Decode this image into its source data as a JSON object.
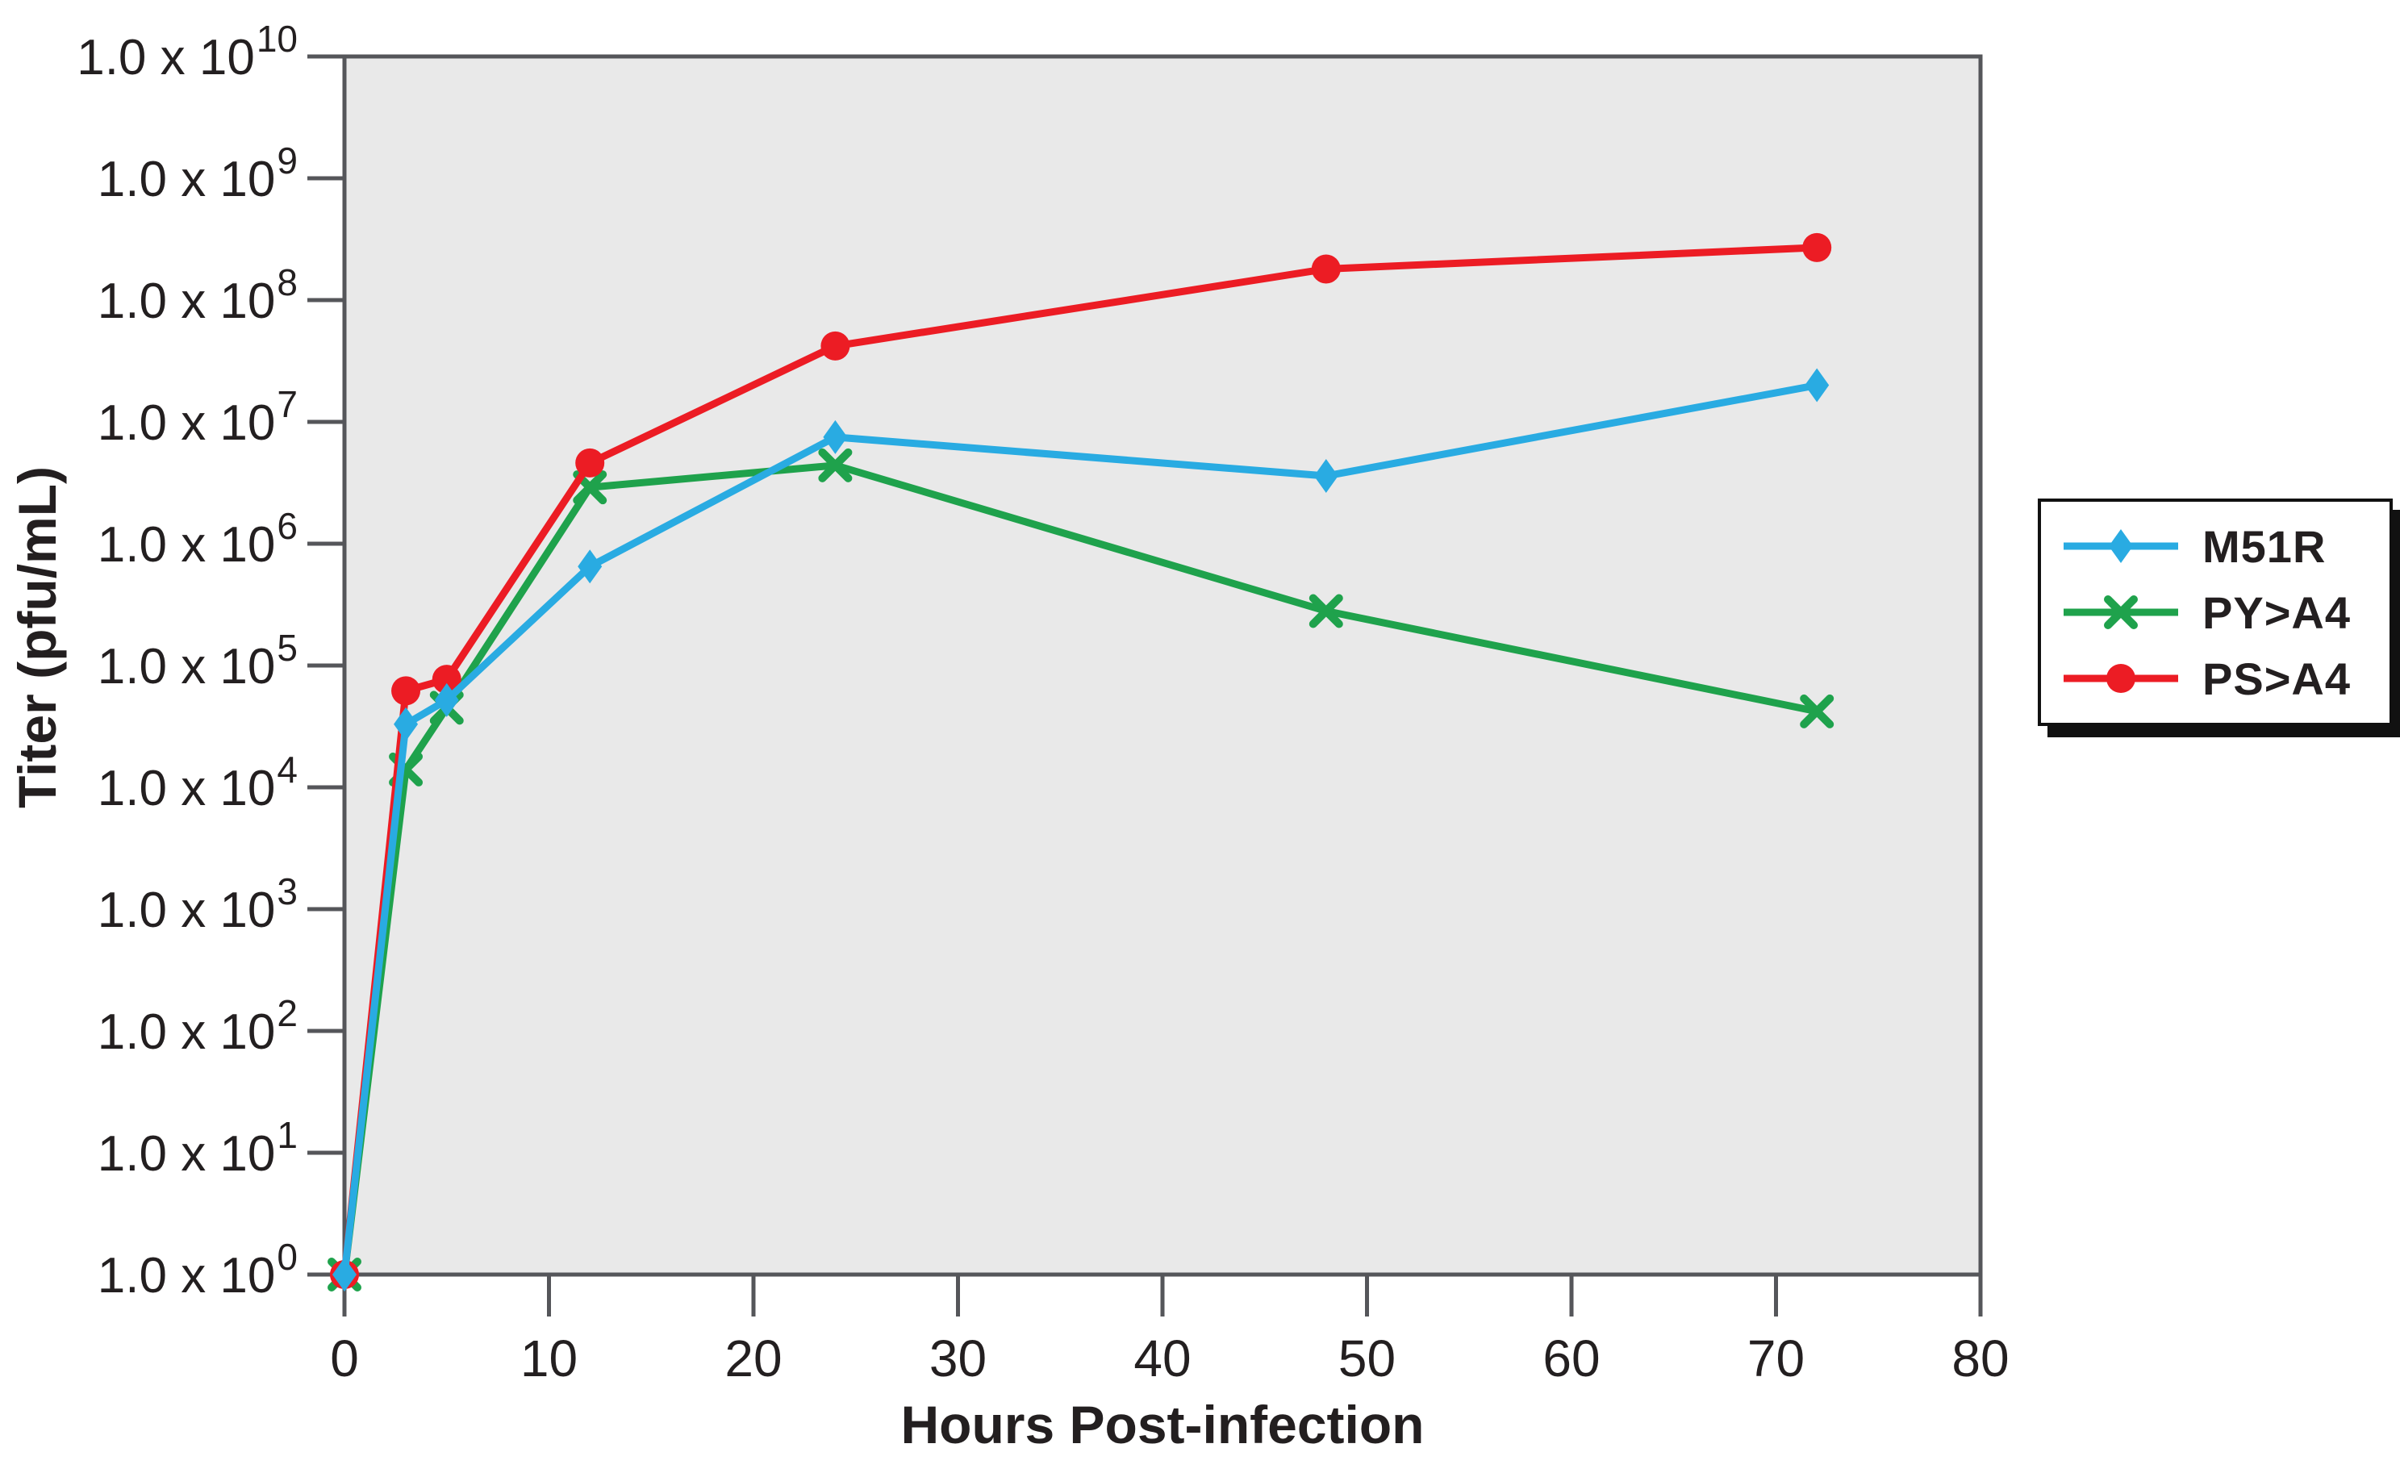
{
  "chart_data": {
    "type": "line",
    "title": "",
    "xlabel": "Hours Post-infection",
    "ylabel": "Titer (pfu/mL)",
    "x_hours": [
      0,
      3,
      5,
      12,
      24,
      48,
      72
    ],
    "xlim": [
      0,
      80
    ],
    "xticks": [
      0,
      10,
      20,
      30,
      40,
      50,
      60,
      70,
      80
    ],
    "y_scale": "log10",
    "ylim_exp": [
      0,
      10
    ],
    "ytick_exponents": [
      0,
      1,
      2,
      3,
      4,
      5,
      6,
      7,
      8,
      9,
      10
    ],
    "ytick_prefix": "1.0 x 10",
    "grid": false,
    "legend_position": "outside-right",
    "plot_bg_color": "#E9E9E9",
    "axis_color": "#55565A",
    "text_color": "#231F20",
    "series": [
      {
        "name": "M51R",
        "color": "#29ABE2",
        "marker": "diamond",
        "values": [
          1,
          33000,
          52000,
          650000,
          7500000,
          3600000,
          20000000
        ]
      },
      {
        "name": "PY>A4",
        "color": "#1FA24C",
        "marker": "x",
        "values": [
          1,
          14000,
          45000,
          2900000,
          4400000,
          280000,
          42000
        ]
      },
      {
        "name": "PS>A4",
        "color": "#EC1C24",
        "marker": "circle",
        "values": [
          1,
          62000,
          77000,
          4600000,
          42000000,
          180000000,
          270000000
        ]
      }
    ],
    "draw_order": [
      1,
      2,
      0
    ]
  }
}
